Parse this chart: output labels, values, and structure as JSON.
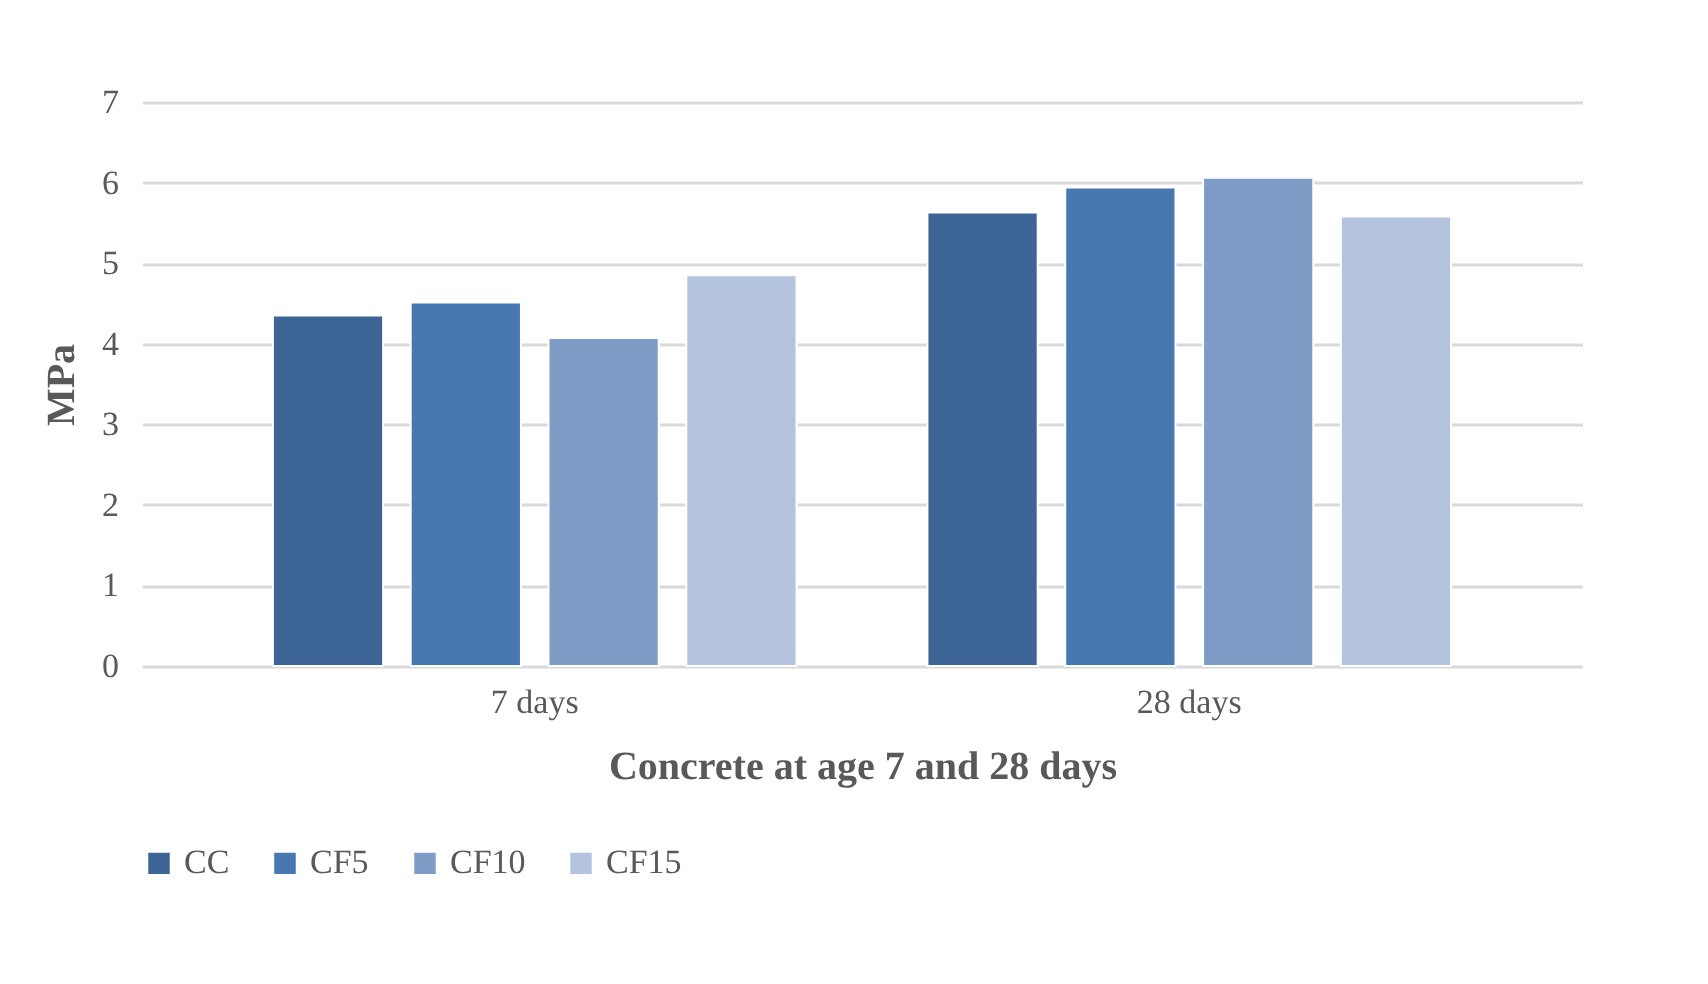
{
  "chart_data": {
    "type": "bar",
    "xlabel": "Concrete at age 7 and 28 days",
    "ylabel": "MPa",
    "categories": [
      "7 days",
      "28 days"
    ],
    "series": [
      {
        "name": "CC",
        "color": "#3c6494",
        "values": [
          4.35,
          5.63
        ]
      },
      {
        "name": "CF5",
        "color": "#4878b0",
        "values": [
          4.51,
          5.94
        ]
      },
      {
        "name": "CF10",
        "color": "#7f9cc6",
        "values": [
          4.07,
          6.06
        ]
      },
      {
        "name": "CF15",
        "color": "#b4c3de",
        "values": [
          4.85,
          5.58
        ]
      }
    ],
    "ylim": [
      0,
      7
    ],
    "yticks": [
      0,
      1,
      2,
      3,
      4,
      5,
      6,
      7
    ],
    "grid": "y",
    "legend": "bottom"
  }
}
